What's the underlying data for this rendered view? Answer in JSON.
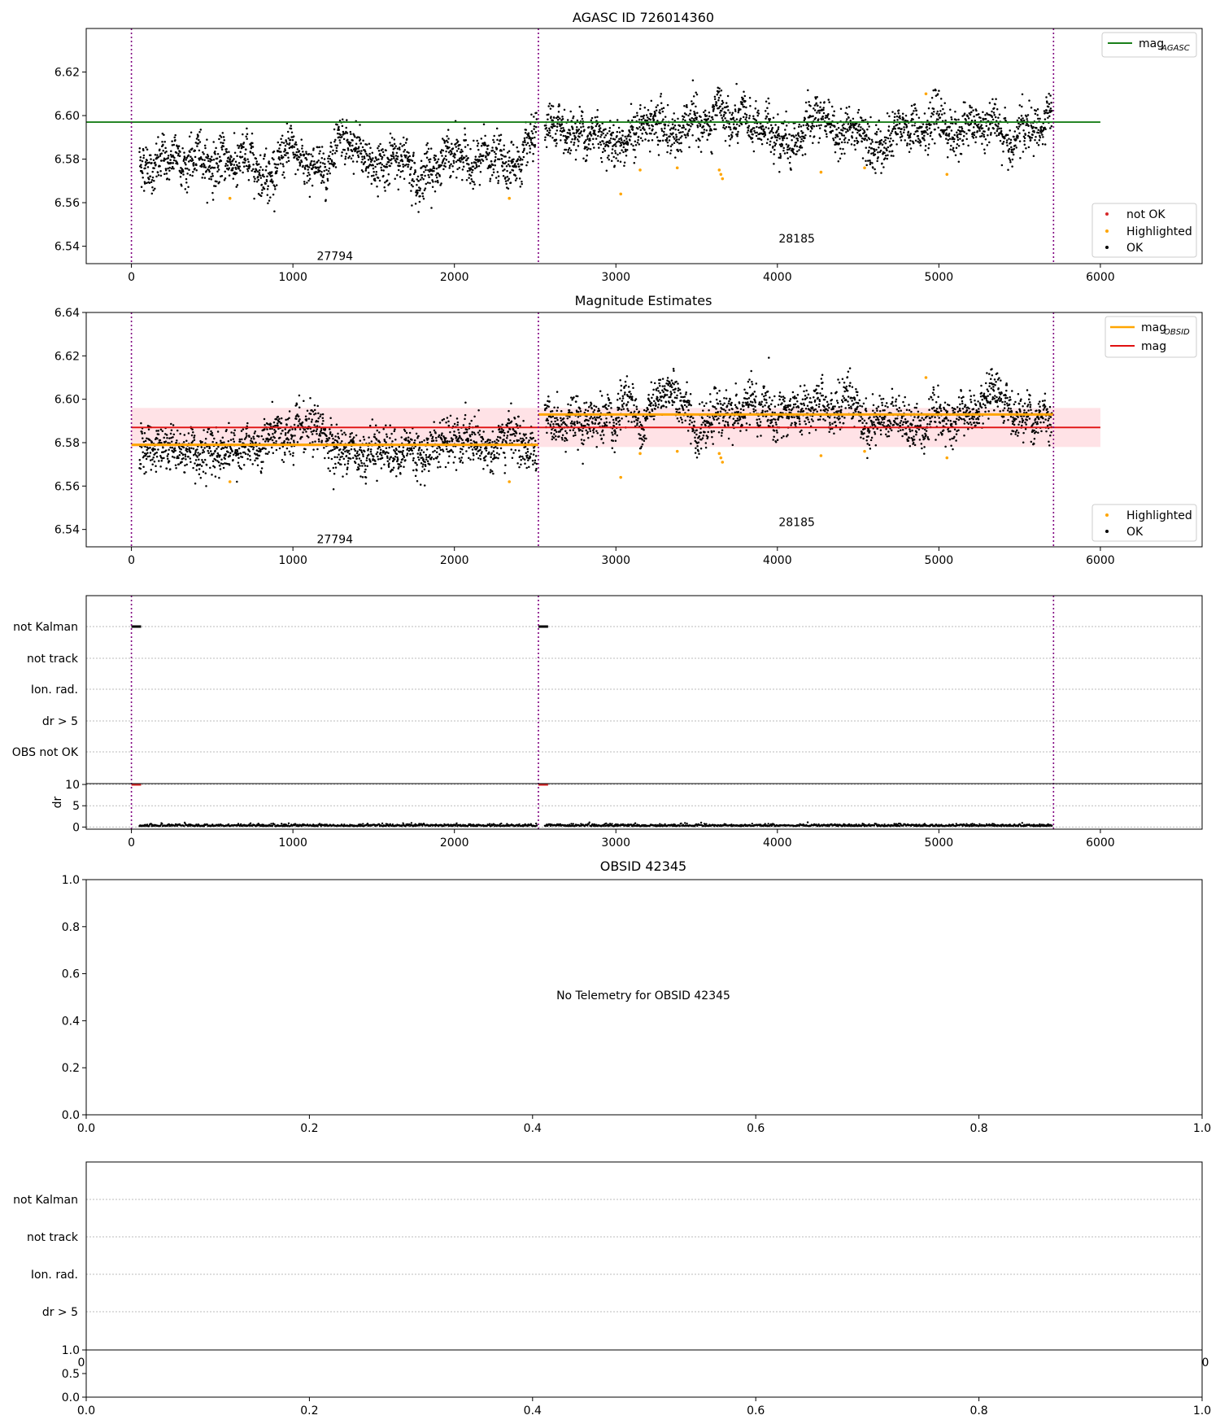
{
  "chart_data": [
    {
      "type": "scatter",
      "title": "AGASC ID 726014360",
      "xlim": [
        -280,
        6630
      ],
      "ylim": [
        6.532,
        6.64
      ],
      "xticks": [
        0,
        1000,
        2000,
        3000,
        4000,
        5000,
        6000
      ],
      "yticks": [
        6.54,
        6.56,
        6.58,
        6.6,
        6.62
      ],
      "obs_boundaries": [
        0,
        2520,
        5710
      ],
      "obs_labels": [
        {
          "text": "27794",
          "x": 1260,
          "y": 6.5355
        },
        {
          "text": "28185",
          "x": 4120,
          "y": 6.5435
        }
      ],
      "hlines": [
        {
          "name": "mag_AGASC",
          "value": 6.597,
          "color": "#1a7f1a",
          "xmin": -280,
          "xmax": 6000
        }
      ],
      "series": [
        {
          "name": "OK",
          "color": "#000000",
          "segments": [
            {
              "x": [
                50,
                2510
              ],
              "mean": 6.579,
              "spread": 0.0065
            },
            {
              "x": [
                2560,
                5700
              ],
              "mean": 6.593,
              "spread": 0.0065
            }
          ]
        },
        {
          "name": "Highlighted",
          "color": "#ffa500",
          "points": [
            [
              610,
              6.562
            ],
            [
              2340,
              6.562
            ],
            [
              3030,
              6.564
            ],
            [
              3150,
              6.575
            ],
            [
              3380,
              6.576
            ],
            [
              3640,
              6.575
            ],
            [
              3660,
              6.571
            ],
            [
              3650,
              6.573
            ],
            [
              4270,
              6.574
            ],
            [
              4540,
              6.576
            ],
            [
              4920,
              6.61
            ],
            [
              5050,
              6.573
            ]
          ]
        }
      ],
      "legend": {
        "upper_right": [
          {
            "label": "mag",
            "sub": "AGASC",
            "kind": "line",
            "color": "#1a7f1a"
          }
        ],
        "lower_right": [
          {
            "label": "not OK",
            "kind": "dot",
            "color": "#d62728"
          },
          {
            "label": "Highlighted",
            "kind": "dot",
            "color": "#ffa500"
          },
          {
            "label": "OK",
            "kind": "dot",
            "color": "#000000"
          }
        ]
      }
    },
    {
      "type": "scatter",
      "title": "Magnitude Estimates",
      "xlim": [
        -280,
        6630
      ],
      "ylim": [
        6.532,
        6.64
      ],
      "xticks": [
        0,
        1000,
        2000,
        3000,
        4000,
        5000,
        6000
      ],
      "yticks": [
        6.54,
        6.56,
        6.58,
        6.6,
        6.62,
        6.64
      ],
      "obs_boundaries": [
        0,
        2520,
        5710
      ],
      "obs_labels": [
        {
          "text": "27794",
          "x": 1260,
          "y": 6.5355
        },
        {
          "text": "28185",
          "x": 4120,
          "y": 6.5435
        }
      ],
      "hlines": [
        {
          "name": "mag_OBSID 27794",
          "value": 6.579,
          "color": "#ffa500",
          "xmin": 0,
          "xmax": 2520
        },
        {
          "name": "mag_OBSID 28185",
          "value": 6.593,
          "color": "#ffa500",
          "xmin": 2520,
          "xmax": 5710
        },
        {
          "name": "mag",
          "value": 6.587,
          "color": "#e01010",
          "xmin": 0,
          "xmax": 6000
        }
      ],
      "band": {
        "low": 6.578,
        "high": 6.596,
        "xmin": 0,
        "xmax": 6000,
        "color": "#ffb6c1"
      },
      "series": [
        {
          "name": "OK",
          "color": "#000000",
          "segments": [
            {
              "x": [
                50,
                2510
              ],
              "mean": 6.579,
              "spread": 0.0065
            },
            {
              "x": [
                2560,
                5700
              ],
              "mean": 6.593,
              "spread": 0.0065
            }
          ]
        },
        {
          "name": "Highlighted",
          "color": "#ffa500",
          "points": [
            [
              610,
              6.562
            ],
            [
              2340,
              6.562
            ],
            [
              3030,
              6.564
            ],
            [
              3150,
              6.575
            ],
            [
              3380,
              6.576
            ],
            [
              3640,
              6.575
            ],
            [
              3660,
              6.571
            ],
            [
              3650,
              6.573
            ],
            [
              4270,
              6.574
            ],
            [
              4540,
              6.576
            ],
            [
              4920,
              6.61
            ],
            [
              5050,
              6.573
            ]
          ]
        }
      ],
      "legend": {
        "upper_right": [
          {
            "label": "mag",
            "sub": "OBSID",
            "kind": "line",
            "color": "#ffa500"
          },
          {
            "label": "mag",
            "sub": "",
            "kind": "line",
            "color": "#e01010"
          }
        ],
        "lower_right": [
          {
            "label": "Highlighted",
            "kind": "dot",
            "color": "#ffa500"
          },
          {
            "label": "OK",
            "kind": "dot",
            "color": "#000000"
          }
        ]
      }
    },
    {
      "type": "flags",
      "xlim": [
        -280,
        6630
      ],
      "xticks": [
        0,
        1000,
        2000,
        3000,
        4000,
        5000,
        6000
      ],
      "obs_boundaries": [
        0,
        2520,
        5710
      ],
      "flag_rows": [
        "not Kalman",
        "not track",
        "Ion. rad.",
        "dr > 5",
        "OBS not OK"
      ],
      "flag_segments": [
        {
          "row": "not Kalman",
          "x": [
            0,
            60
          ]
        },
        {
          "row": "not Kalman",
          "x": [
            2520,
            2580
          ]
        }
      ],
      "dr": {
        "ylabel": "dr",
        "yticks": [
          0,
          5,
          10
        ],
        "ylim": [
          -0.5,
          10.2
        ],
        "red_segments": [
          [
            0,
            60
          ],
          [
            2520,
            2580
          ]
        ],
        "base": 0.2,
        "segments": [
          [
            50,
            2510
          ],
          [
            2560,
            5700
          ]
        ]
      }
    },
    {
      "type": "empty",
      "title": "OBSID 42345",
      "message": "No Telemetry for OBSID 42345",
      "xticks": [
        "0.0",
        "0.2",
        "0.4",
        "0.6",
        "0.8",
        "1.0"
      ],
      "yticks": [
        "0.0",
        "0.2",
        "0.4",
        "0.6",
        "0.8",
        "1.0"
      ]
    },
    {
      "type": "flags",
      "flag_rows": [
        "not Kalman",
        "not track",
        "Ion. rad.",
        "dr > 5"
      ],
      "overlap_ticks": [
        "0",
        "0"
      ],
      "bottom_yticks": [
        "0.0",
        "0.5",
        "1.0"
      ],
      "bottom_xticks": [
        "0.0",
        "0.2",
        "0.4",
        "0.6",
        "0.8",
        "1.0"
      ]
    }
  ]
}
